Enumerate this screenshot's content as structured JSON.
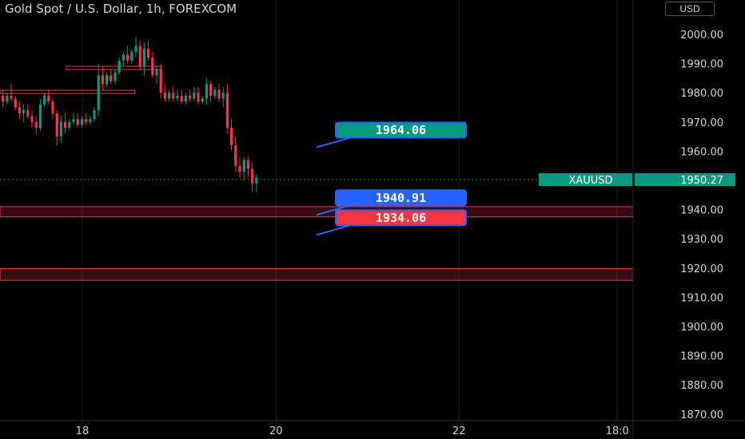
{
  "header": {
    "title": "Gold Spot / U.S. Dollar, 1h, FOREXCOM",
    "currency": "USD"
  },
  "chart_data": {
    "type": "candlestick",
    "ylim": [
      1866,
      2017
    ],
    "y_ticks": [
      "2000.00",
      "1990.00",
      "1980.00",
      "1970.00",
      "1960.00",
      "1950.00",
      "1940.00",
      "1930.00",
      "1920.00",
      "1910.00",
      "1900.00",
      "1890.00",
      "1880.00",
      "1870.00"
    ],
    "x_ticks": [
      {
        "label": "18",
        "x": 0.13
      },
      {
        "label": "20",
        "x": 0.436
      },
      {
        "label": "22",
        "x": 0.725
      },
      {
        "label": "18:0",
        "x": 0.975
      }
    ],
    "last_price": {
      "symbol": "XAUUSD",
      "value": "1950.27"
    },
    "callouts": [
      {
        "text": "1964.06",
        "color": "#089981",
        "border": "#2962ff",
        "price": 1964.06
      },
      {
        "text": "1940.91",
        "color": "#2962ff",
        "border": "#2962ff",
        "price": 1940.91
      },
      {
        "text": "1934.06",
        "color": "#f23645",
        "border": "#2962ff",
        "price": 1934.06
      }
    ],
    "zones": [
      {
        "low": 1937.5,
        "high": 1941.0,
        "color": "#f23645"
      },
      {
        "low": 1915.8,
        "high": 1919.8,
        "color": "#f23645"
      }
    ],
    "levels": [
      {
        "price": 1988.5,
        "x_from": 0.105,
        "x_to": 0.255
      },
      {
        "price": 1980.3,
        "x_from": 0.0,
        "x_to": 0.213
      }
    ],
    "candles": [
      [
        1979,
        1981,
        1975,
        1977
      ],
      [
        1977,
        1980,
        1976,
        1979
      ],
      [
        1979,
        1983,
        1977,
        1978
      ],
      [
        1978,
        1979,
        1974,
        1975
      ],
      [
        1975,
        1977,
        1971,
        1973
      ],
      [
        1973,
        1976,
        1970,
        1974
      ],
      [
        1974,
        1976,
        1971,
        1972
      ],
      [
        1972,
        1974,
        1968,
        1970
      ],
      [
        1970,
        1972,
        1966,
        1968
      ],
      [
        1968,
        1978,
        1967,
        1976
      ],
      [
        1976,
        1980,
        1975,
        1979
      ],
      [
        1979,
        1981,
        1976,
        1977
      ],
      [
        1977,
        1978,
        1971,
        1973
      ],
      [
        1973,
        1974,
        1962,
        1965
      ],
      [
        1965,
        1972,
        1963,
        1970
      ],
      [
        1970,
        1973,
        1966,
        1968
      ],
      [
        1968,
        1971,
        1967,
        1970
      ],
      [
        1970,
        1973,
        1969,
        1971
      ],
      [
        1971,
        1973,
        1968,
        1969
      ],
      [
        1969,
        1972,
        1968,
        1971
      ],
      [
        1971,
        1973,
        1969,
        1970
      ],
      [
        1970,
        1972,
        1969,
        1971
      ],
      [
        1971,
        1975,
        1970,
        1974
      ],
      [
        1974,
        1990,
        1972,
        1986
      ],
      [
        1986,
        1989,
        1981,
        1983
      ],
      [
        1983,
        1987,
        1982,
        1986
      ],
      [
        1986,
        1988,
        1983,
        1984
      ],
      [
        1984,
        1988,
        1983,
        1987
      ],
      [
        1987,
        1992,
        1986,
        1991
      ],
      [
        1991,
        1994,
        1989,
        1993
      ],
      [
        1993,
        1996,
        1990,
        1991
      ],
      [
        1991,
        1995,
        1990,
        1994
      ],
      [
        1994,
        1999,
        1992,
        1996
      ],
      [
        1996,
        1998,
        1988,
        1989
      ],
      [
        1989,
        1997,
        1986,
        1995
      ],
      [
        1995,
        1998,
        1991,
        1992
      ],
      [
        1992,
        1994,
        1985,
        1986
      ],
      [
        1986,
        1989,
        1983,
        1988
      ],
      [
        1988,
        1990,
        1978,
        1980
      ],
      [
        1980,
        1983,
        1977,
        1978
      ],
      [
        1978,
        1981,
        1977,
        1980
      ],
      [
        1980,
        1982,
        1977,
        1978
      ],
      [
        1978,
        1981,
        1977,
        1979
      ],
      [
        1979,
        1981,
        1976,
        1977
      ],
      [
        1977,
        1980,
        1976,
        1979
      ],
      [
        1979,
        1981,
        1977,
        1978
      ],
      [
        1978,
        1982,
        1977,
        1980
      ],
      [
        1980,
        1982,
        1976,
        1977
      ],
      [
        1977,
        1979,
        1976,
        1978
      ],
      [
        1978,
        1985,
        1976,
        1983
      ],
      [
        1983,
        1984,
        1977,
        1979
      ],
      [
        1979,
        1982,
        1978,
        1981
      ],
      [
        1981,
        1983,
        1977,
        1978
      ],
      [
        1978,
        1982,
        1975,
        1980
      ],
      [
        1980,
        1983,
        1966,
        1968
      ],
      [
        1968,
        1971,
        1960,
        1962
      ],
      [
        1962,
        1965,
        1953,
        1955
      ],
      [
        1955,
        1958,
        1951,
        1953
      ],
      [
        1953,
        1958,
        1950,
        1957
      ],
      [
        1957,
        1958,
        1951,
        1954
      ],
      [
        1954,
        1956,
        1946,
        1949
      ],
      [
        1949,
        1952,
        1946,
        1951
      ]
    ]
  }
}
